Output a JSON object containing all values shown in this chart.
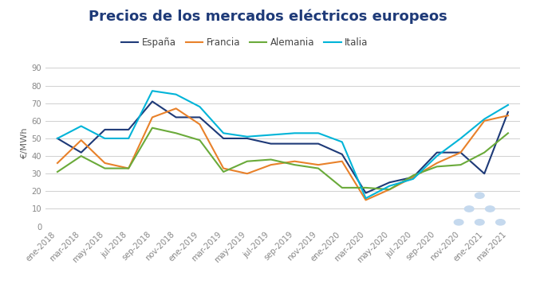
{
  "title": "Precios de los mercados eléctricos europeos",
  "ylabel": "€/MWh",
  "ylim": [
    0,
    95
  ],
  "yticks": [
    0,
    10,
    20,
    30,
    40,
    50,
    60,
    70,
    80,
    90
  ],
  "colors": {
    "España": "#1e3a78",
    "Francia": "#e8812a",
    "Alemania": "#6aaa3a",
    "Italia": "#00b4d8"
  },
  "labels": [
    "ene-2018",
    "mar-2018",
    "may-2018",
    "jul-2018",
    "sep-2018",
    "nov-2018",
    "ene-2019",
    "mar-2019",
    "may-2019",
    "jul-2019",
    "sep-2019",
    "nov-2019",
    "ene-2020",
    "mar-2020",
    "may-2020",
    "jul-2020",
    "sep-2020",
    "nov-2020",
    "ene-2021",
    "mar-2021"
  ],
  "España": [
    50,
    42,
    55,
    55,
    71,
    62,
    62,
    50,
    50,
    47,
    47,
    47,
    41,
    19,
    25,
    28,
    42,
    42,
    30,
    65
  ],
  "Francia": [
    36,
    49,
    36,
    33,
    62,
    67,
    58,
    33,
    30,
    35,
    37,
    35,
    37,
    15,
    21,
    28,
    36,
    42,
    60,
    63
  ],
  "Alemania": [
    31,
    40,
    33,
    33,
    56,
    53,
    49,
    31,
    37,
    38,
    35,
    33,
    22,
    22,
    21,
    29,
    34,
    35,
    42,
    53
  ],
  "Italia": [
    50,
    57,
    50,
    50,
    77,
    75,
    68,
    53,
    51,
    52,
    53,
    53,
    48,
    16,
    23,
    27,
    40,
    50,
    61,
    69
  ],
  "background": "#ffffff",
  "grid_color": "#d0d0d0",
  "title_fontsize": 13,
  "legend_fontsize": 8.5,
  "tick_fontsize": 7.2,
  "title_color": "#1e3a78"
}
